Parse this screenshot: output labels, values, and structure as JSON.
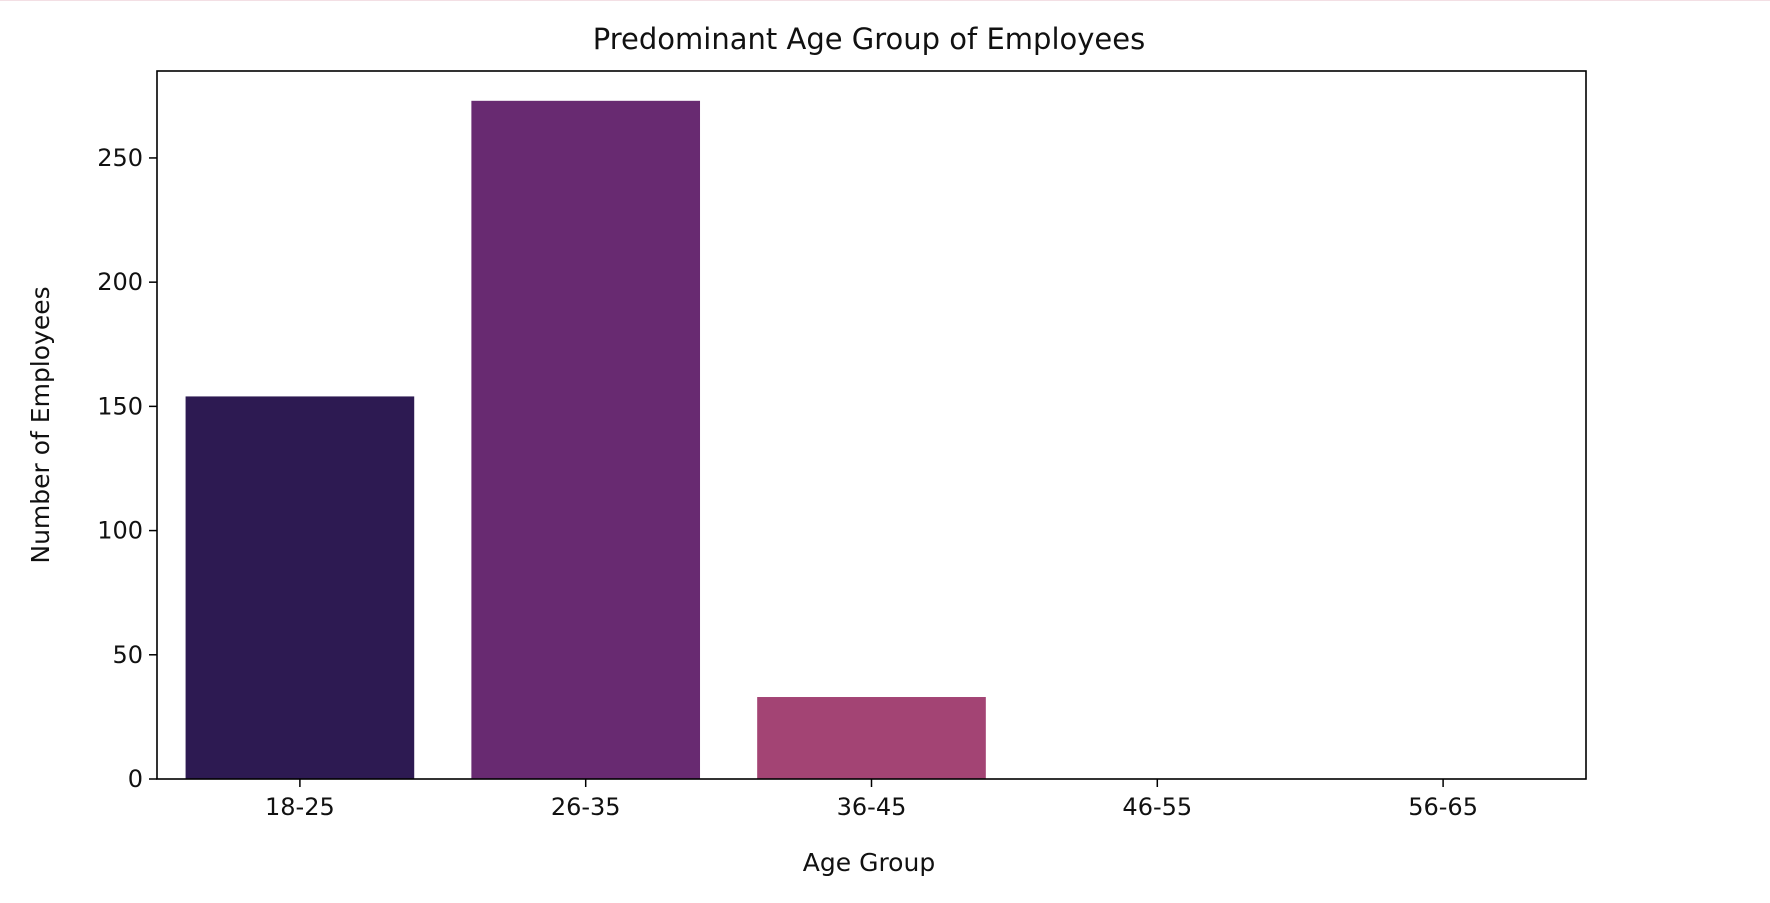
{
  "chart_data": {
    "type": "bar",
    "title": "Predominant Age Group of Employees",
    "xlabel": "Age Group",
    "ylabel": "Number of Employees",
    "categories": [
      "18-25",
      "26-35",
      "36-45",
      "46-55",
      "56-65"
    ],
    "values": [
      154,
      273,
      33,
      0,
      0
    ],
    "colors": [
      "#2d1a52",
      "#682a71",
      "#a34474",
      "#d9566a",
      "#f37e5a"
    ],
    "ylim": [
      0,
      285
    ],
    "yticks": [
      0,
      50,
      100,
      150,
      200,
      250
    ],
    "grid": false,
    "legend": "none"
  }
}
